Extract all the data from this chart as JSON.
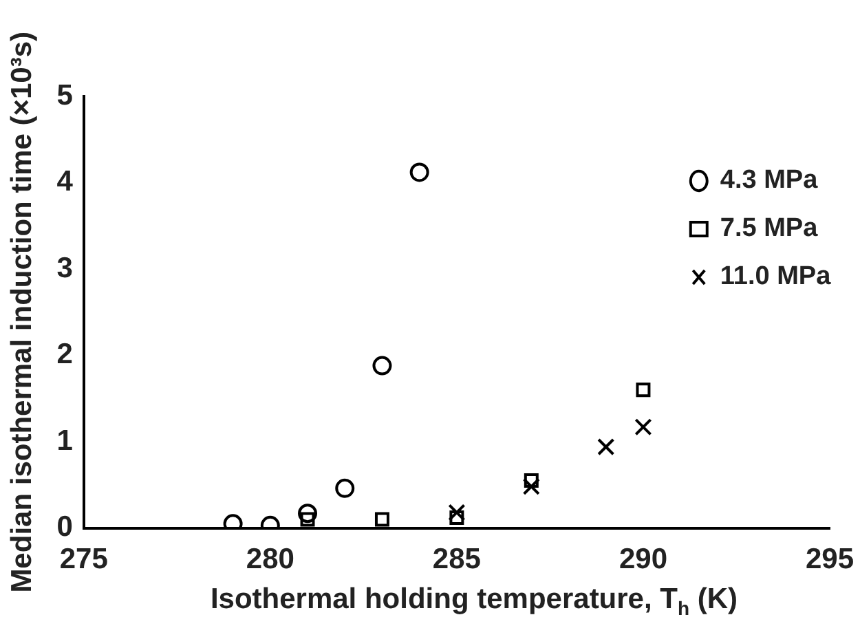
{
  "chart_data": {
    "type": "scatter",
    "xlabel": "Isothermal holding temperature, T$_{h}$ (K)",
    "ylabel": "Median isothermal induction time (×10³s)",
    "xlim": [
      275,
      295
    ],
    "xticks": [
      275,
      280,
      285,
      290,
      295
    ],
    "ylim": [
      0,
      5
    ],
    "yticks": [
      0,
      1,
      2,
      3,
      4,
      5
    ],
    "grid": false,
    "legend": "top right",
    "series": [
      {
        "name": "4.3 MPa",
        "color": "#000000",
        "marker": "circle",
        "x": [
          279,
          280,
          281,
          282,
          283,
          284
        ],
        "values": [
          0.05,
          0.03,
          0.17,
          0.46,
          1.88,
          4.12
        ]
      },
      {
        "name": "7.5 MPa",
        "color": "#000000",
        "marker": "square",
        "x": [
          281,
          283,
          285,
          287,
          290
        ],
        "values": [
          0.1,
          0.1,
          0.12,
          0.55,
          1.6
        ]
      },
      {
        "name": "11.0 MPa",
        "color": "#000000",
        "marker": "cross",
        "x": [
          285,
          287,
          289,
          290
        ],
        "values": [
          0.18,
          0.48,
          0.94,
          1.17
        ]
      }
    ]
  }
}
